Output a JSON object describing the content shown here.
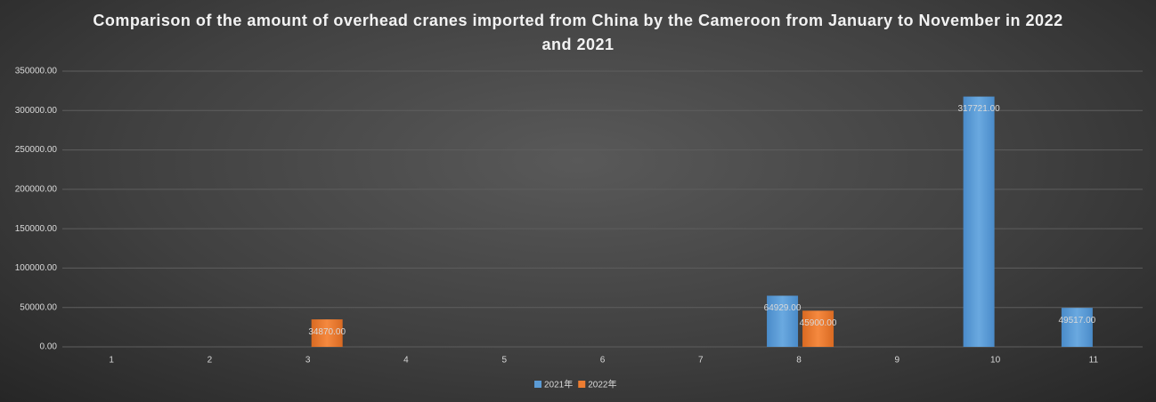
{
  "chart_data": {
    "type": "bar",
    "title": "Comparison of the amount of overhead cranes imported from China by the Cameroon from January to November in 2022 and 2021",
    "categories": [
      "1",
      "2",
      "3",
      "4",
      "5",
      "6",
      "7",
      "8",
      "9",
      "10",
      "11"
    ],
    "series": [
      {
        "name": "2021年",
        "color": "#5b9bd5",
        "values": [
          null,
          null,
          null,
          null,
          null,
          null,
          null,
          64929,
          null,
          317721,
          49517
        ],
        "value_labels": [
          null,
          null,
          null,
          null,
          null,
          null,
          null,
          "64929.00",
          null,
          "317721.00",
          "49517.00"
        ]
      },
      {
        "name": "2022年",
        "color": "#ed7d31",
        "values": [
          null,
          null,
          34870,
          null,
          null,
          null,
          null,
          45900,
          null,
          null,
          null
        ],
        "value_labels": [
          null,
          null,
          "34870.00",
          null,
          null,
          null,
          null,
          "45900.00",
          null,
          null,
          null
        ]
      }
    ],
    "ylim": [
      0,
      350000
    ],
    "yticks": [
      {
        "value": 0,
        "label": "0.00"
      },
      {
        "value": 50000,
        "label": "50000.00"
      },
      {
        "value": 100000,
        "label": "100000.00"
      },
      {
        "value": 150000,
        "label": "150000.00"
      },
      {
        "value": 200000,
        "label": "200000.00"
      },
      {
        "value": 250000,
        "label": "250000.00"
      },
      {
        "value": 300000,
        "label": "300000.00"
      },
      {
        "value": 350000,
        "label": "350000.00"
      }
    ],
    "grid": true,
    "legend": "bottom"
  }
}
